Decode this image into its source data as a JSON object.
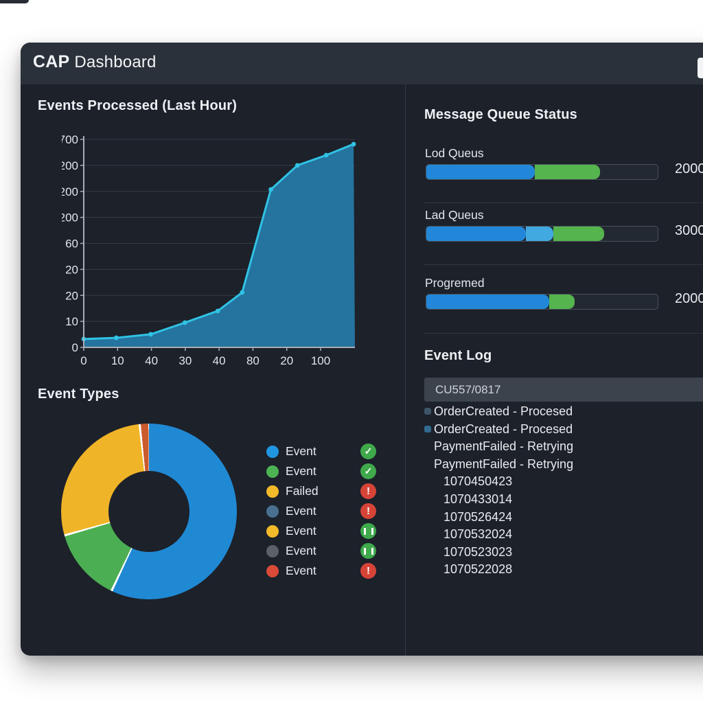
{
  "colors": {
    "window_bg": "#1c212a",
    "header_bg": "#2b313a",
    "bar_blue": "#2287d8",
    "bar_light_blue": "#41a9e0",
    "bar_green": "#55b44d",
    "line_cyan": "#30c3e4",
    "area_fill": "#2577a4",
    "status_green": "#3fa94c",
    "status_red": "#d64438",
    "grid_line": "rgba(255,255,255,0.12)",
    "axis": "#a7afb8",
    "tick_text": "#e2e6ea"
  },
  "window": {
    "title_primary": "CAP",
    "title_secondary": "Dashboard"
  },
  "left": {
    "area_title": "Events Processed (Last Hour)",
    "donut_title": "Event Types"
  },
  "chart_data": [
    {
      "type": "area",
      "title": "Events Processed (Last Hour)",
      "x_tick_labels": [
        "0",
        "10",
        "40",
        "30",
        "40",
        "80",
        "20",
        "100"
      ],
      "y_tick_labels_top_to_bottom": [
        "700",
        "200",
        "200",
        "200",
        "60",
        "20",
        "20",
        "10",
        "0"
      ],
      "points_percent": [
        [
          0,
          4
        ],
        [
          12,
          4.6
        ],
        [
          24.7,
          6.3
        ],
        [
          37.3,
          11.9
        ],
        [
          49.4,
          17.5
        ],
        [
          58.4,
          26.4
        ],
        [
          69,
          75.9
        ],
        [
          78.8,
          87.5
        ],
        [
          89.4,
          92.4
        ],
        [
          99.5,
          97.7
        ]
      ],
      "line_color": "#30c3e4",
      "fill_color": "#2577a4",
      "grid": true,
      "legend_position": "none"
    },
    {
      "type": "pie",
      "donut": true,
      "title": "Event Types",
      "slices": [
        {
          "label": "Event",
          "color": "#2089d4",
          "percent": 56.8
        },
        {
          "label": "Event",
          "color": "#4cae52",
          "percent": 13.2
        },
        {
          "label": "Failed",
          "color": "#f0b428",
          "percent": 27.3
        },
        {
          "label": "Event",
          "color": "#cb5a2d",
          "percent": 1.4
        }
      ],
      "separator_color": "#ffffff",
      "legend_position": "right"
    }
  ],
  "legend": [
    {
      "label": "Event",
      "dot": "#2196e0",
      "status": "check"
    },
    {
      "label": "Event",
      "dot": "#4db453",
      "status": "check"
    },
    {
      "label": "Failed",
      "dot": "#f2ba2a",
      "status": "error"
    },
    {
      "label": "Event",
      "dot": "#49708f",
      "status": "error"
    },
    {
      "label": "Event",
      "dot": "#f2ba2a",
      "status": "pause"
    },
    {
      "label": "Event",
      "dot": "#5c6167",
      "status": "pause"
    },
    {
      "label": "Event",
      "dot": "#da4a38",
      "status": "error"
    }
  ],
  "queues": {
    "title": "Message Queue Status",
    "items": [
      {
        "label": "Lod Queus",
        "value": "2000",
        "segments": [
          {
            "color": "#2287d8",
            "from": 0,
            "to": 47
          },
          {
            "color": "#55b44d",
            "from": 47,
            "to": 75
          }
        ]
      },
      {
        "label": "Lad Queus",
        "value": "3000",
        "segments": [
          {
            "color": "#2287d8",
            "from": 0,
            "to": 43
          },
          {
            "color": "#41a9e0",
            "from": 43,
            "to": 55
          },
          {
            "color": "#55b44d",
            "from": 55,
            "to": 77
          }
        ]
      },
      {
        "label": "Progremed",
        "value": "2000",
        "segments": [
          {
            "color": "#2287d8",
            "from": 0,
            "to": 53
          },
          {
            "color": "#55b44d",
            "from": 53,
            "to": 64
          }
        ]
      }
    ]
  },
  "event_log": {
    "title": "Event Log",
    "filter_value": "CU557/0817",
    "entries": [
      {
        "text": "OrderCreated - Procesed",
        "bullet": "#3e5468"
      },
      {
        "text": "OrderCreated - Procesed",
        "bullet": "#336a92"
      },
      {
        "text": "PaymentFailed - Retrying"
      },
      {
        "text": "PaymentFailed - Retrying"
      },
      {
        "text": "1070450423",
        "indent": true
      },
      {
        "text": "1070433014",
        "indent": true
      },
      {
        "text": "1070526424",
        "indent": true
      },
      {
        "text": "1070532024",
        "indent": true
      },
      {
        "text": "1070523023",
        "indent": true
      },
      {
        "text": "1070522028",
        "indent": true
      }
    ]
  }
}
